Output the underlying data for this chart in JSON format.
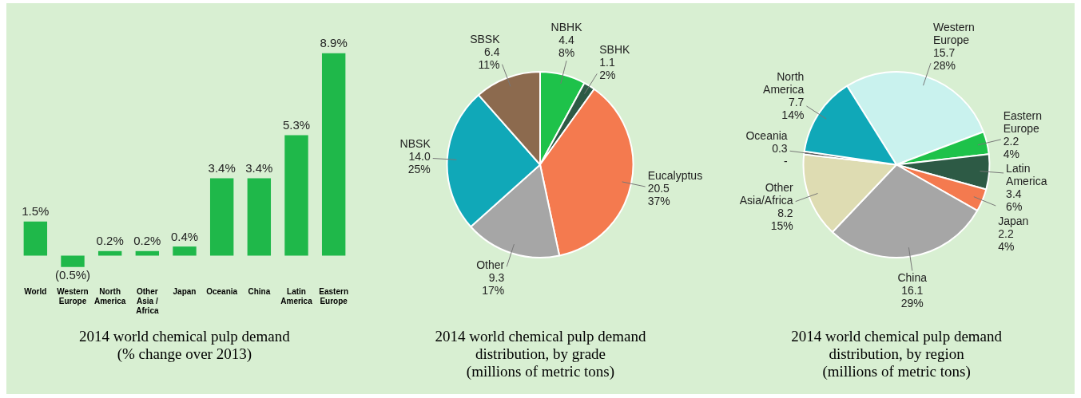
{
  "chart_data": [
    {
      "type": "bar",
      "title": "2014 world chemical pulp demand\n(% change over 2013)",
      "categories": [
        "World",
        "Western\nEurope",
        "North\nAmerica",
        "Other\nAsia /\nAfrica",
        "Japan",
        "Oceania",
        "China",
        "Latin\nAmerica",
        "Eastern\nEurope"
      ],
      "values": [
        1.5,
        -0.5,
        0.2,
        0.2,
        0.4,
        3.4,
        3.4,
        5.3,
        8.9
      ],
      "color": "#1fb84a",
      "value_labels": [
        "1.5%",
        "(0.5%)",
        "0.2%",
        "0.2%",
        "0.4%",
        "3.4%",
        "3.4%",
        "5.3%",
        "8.9%"
      ]
    },
    {
      "type": "pie",
      "title": "2014 world chemical pulp demand\ndistribution, by grade\n(millions of metric tons)",
      "categories": [
        "NBHK",
        "SBHK",
        "Eucalyptus",
        "Other",
        "NBSK",
        "SBSK"
      ],
      "values": [
        4.4,
        1.1,
        20.5,
        9.3,
        14.0,
        6.4
      ],
      "colors": [
        "#1ec24a",
        "#2d5a45",
        "#f47a4f",
        "#a6a6a6",
        "#10a8b8",
        "#8c6a4e"
      ],
      "value_labels": [
        "4.4\n8%",
        "1.1\n2%",
        "20.5\n37%",
        "9.3\n17%",
        "14.0\n25%",
        "6.4\n11%"
      ]
    },
    {
      "type": "pie",
      "title": "2014 world chemical pulp demand\ndistribution, by region\n(millions of metric tons)",
      "categories": [
        "Western\nEurope",
        "Eastern\nEurope",
        "Latin\nAmerica",
        "Japan",
        "China",
        "Other\nAsia/Africa",
        "Oceania",
        "North\nAmerica"
      ],
      "values": [
        15.7,
        2.2,
        3.4,
        2.2,
        16.1,
        8.2,
        0.3,
        7.7
      ],
      "colors": [
        "#c9f2ee",
        "#1ec24a",
        "#2d5a45",
        "#f47a4f",
        "#a6a6a6",
        "#dedcb2",
        "#555555",
        "#10a8b8"
      ],
      "value_labels": [
        "15.7\n28%",
        "2.2\n4%",
        "3.4\n6%",
        "2.2\n4%",
        "16.1\n29%",
        "8.2\n15%",
        "0.3\n-",
        "7.7\n14%"
      ]
    }
  ]
}
